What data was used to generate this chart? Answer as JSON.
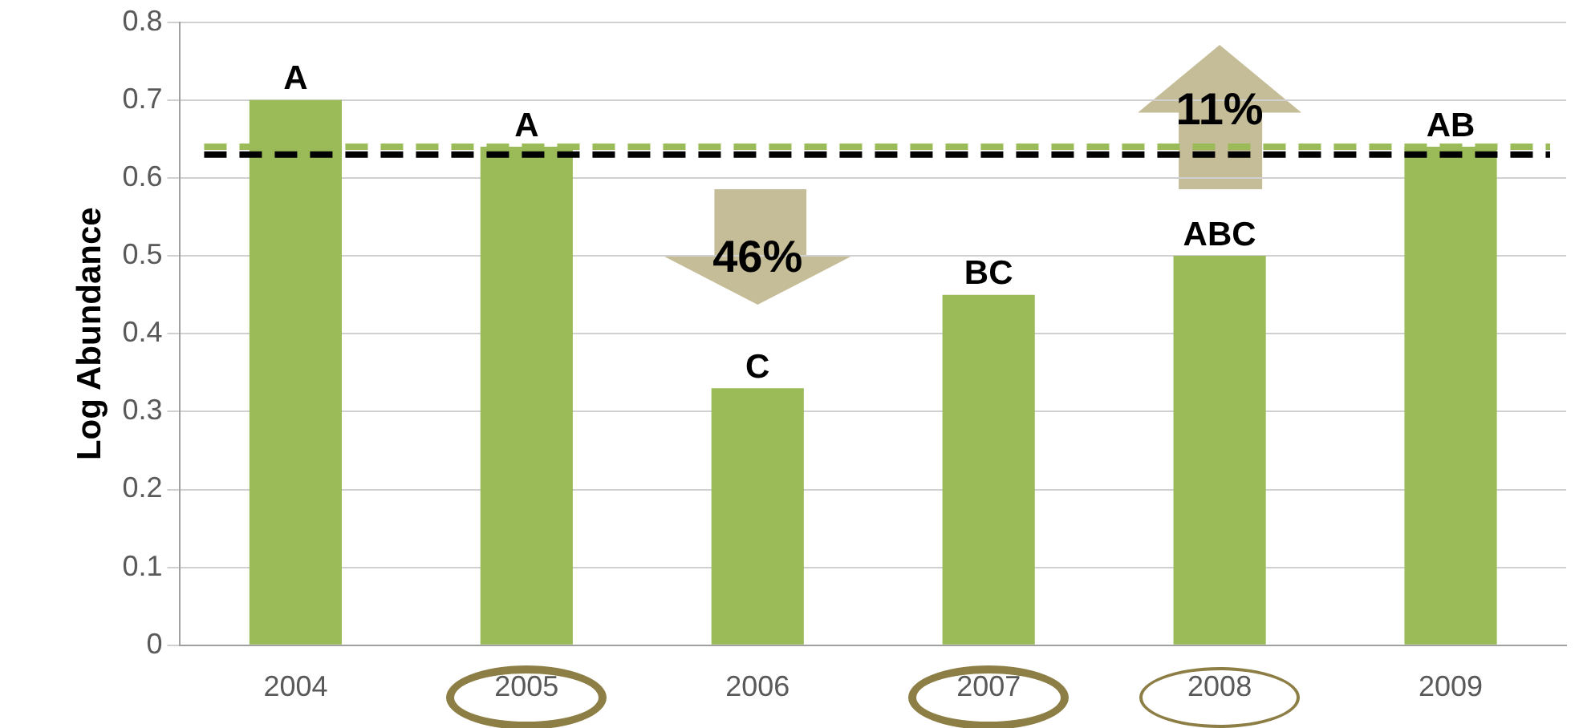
{
  "chart_data": {
    "type": "bar",
    "ylabel": "Log Abundance",
    "categories": [
      "2004",
      "2005",
      "2006",
      "2007",
      "2008",
      "2009"
    ],
    "values": [
      0.7,
      0.64,
      0.33,
      0.45,
      0.5,
      0.64
    ],
    "color": "#9bbb59",
    "ylim": [
      0,
      0.8
    ],
    "yticks": [
      0,
      0.1,
      0.2,
      0.3,
      0.4,
      0.5,
      0.6,
      0.7,
      0.8
    ],
    "grid": "y",
    "legend": false,
    "ref_lines": [
      {
        "axis": "y",
        "value": 0.64,
        "color": "#9bbb59",
        "line_style": "dashed"
      },
      {
        "axis": "y",
        "value": 0.63,
        "color": "#000000",
        "line_style": "dashed"
      }
    ],
    "annotations": [
      {
        "text": "A",
        "x": "2004",
        "y": 0.7
      },
      {
        "text": "A",
        "x": "2005",
        "y": 0.64
      },
      {
        "text": "C",
        "x": "2006",
        "y": 0.33
      },
      {
        "text": "BC",
        "x": "2007",
        "y": 0.45
      },
      {
        "text": "ABC",
        "x": "2008",
        "y": 0.5
      },
      {
        "text": "AB",
        "x": "2009",
        "y": 0.64
      },
      "46%",
      "11%"
    ]
  }
}
